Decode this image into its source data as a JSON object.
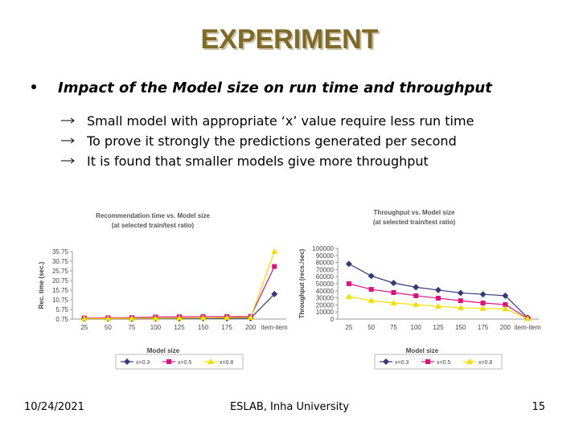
{
  "slide": {
    "title": "EXPERIMENT",
    "bullet": "Impact of the Model size on run time and throughput",
    "subbullets": [
      "Small model with appropriate ‘x’ value require less run time",
      "To prove it strongly the predictions generated per second",
      "It is found that smaller models give more throughput"
    ],
    "footer": {
      "date": "10/24/2021",
      "org": "ESLAB, Inha University",
      "page": "15"
    }
  },
  "chart_data": [
    {
      "type": "line",
      "title": "Recommendation time vs. Model size",
      "subtitle": "(at selected train/test ratio)",
      "x_label": "Model size",
      "y_label": "Rec. time (sec.)",
      "categories": [
        "25",
        "50",
        "75",
        "100",
        "125",
        "150",
        "175",
        "200",
        "item-item"
      ],
      "ylim": [
        0.75,
        35.75
      ],
      "yticks": [
        0.75,
        5.75,
        10.75,
        15.75,
        20.75,
        25.75,
        30.75,
        35.75
      ],
      "grid": false,
      "series": [
        {
          "name": "x=0.3",
          "color": "#333a7a",
          "marker": "diamond",
          "values": [
            0.9,
            0.9,
            0.9,
            1.0,
            1.0,
            1.1,
            1.1,
            1.2,
            13.7
          ]
        },
        {
          "name": "x=0.5",
          "color": "#e0107e",
          "marker": "square",
          "values": [
            1.3,
            1.4,
            1.5,
            1.8,
            1.9,
            2.0,
            2.0,
            2.1,
            28
          ]
        },
        {
          "name": "x=0.8",
          "color": "#f0e000",
          "marker": "triangle",
          "values": [
            1.0,
            1.0,
            1.1,
            1.2,
            1.3,
            1.4,
            1.5,
            1.6,
            35.75
          ]
        }
      ]
    },
    {
      "type": "line",
      "title": "Throughput vs. Model size",
      "subtitle": "(at selected train/test ratio)",
      "x_label": "Model size",
      "y_label": "Throughput (recs./sec)",
      "categories": [
        "25",
        "50",
        "75",
        "100",
        "125",
        "150",
        "175",
        "200",
        "item-item"
      ],
      "ylim": [
        0,
        100000
      ],
      "yticks": [
        0,
        10000,
        20000,
        30000,
        40000,
        50000,
        60000,
        70000,
        80000,
        90000,
        100000
      ],
      "grid": false,
      "series": [
        {
          "name": "x=0.3",
          "color": "#333a7a",
          "marker": "diamond",
          "values": [
            78000,
            61000,
            51000,
            45000,
            41000,
            37000,
            35000,
            33000,
            2000
          ]
        },
        {
          "name": "x=0.5",
          "color": "#e0107e",
          "marker": "square",
          "values": [
            50000,
            42000,
            37500,
            33000,
            29500,
            26000,
            22700,
            20500,
            1000
          ]
        },
        {
          "name": "x=0.8",
          "color": "#f0e000",
          "marker": "triangle",
          "values": [
            32000,
            26000,
            22700,
            20500,
            18000,
            16000,
            15000,
            14500,
            500
          ]
        }
      ]
    }
  ]
}
